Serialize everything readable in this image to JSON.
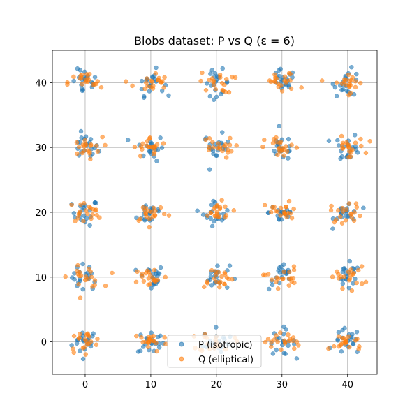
{
  "chart_data": {
    "type": "scatter",
    "title": "Blobs dataset: P vs Q (ε = 6)",
    "xlabel": "",
    "ylabel": "",
    "xlim": [
      -5,
      44.5
    ],
    "ylim": [
      -5,
      45
    ],
    "xticks": [
      0,
      10,
      20,
      30,
      40
    ],
    "yticks": [
      0,
      10,
      20,
      30,
      40
    ],
    "grid": true,
    "legend_position": "bottom-center",
    "blob_centers_x": [
      0,
      10,
      20,
      30,
      40
    ],
    "blob_centers_y": [
      0,
      10,
      20,
      30,
      40
    ],
    "series": [
      {
        "name": "P (isotropic)",
        "color": "#1f77b4",
        "points_per_blob": 20,
        "spread_x": 1.0,
        "spread_y": 1.0
      },
      {
        "name": "Q (elliptical)",
        "color": "#ff7f0e",
        "points_per_blob": 20,
        "spread_x": 1.3,
        "spread_y": 0.8
      }
    ]
  }
}
